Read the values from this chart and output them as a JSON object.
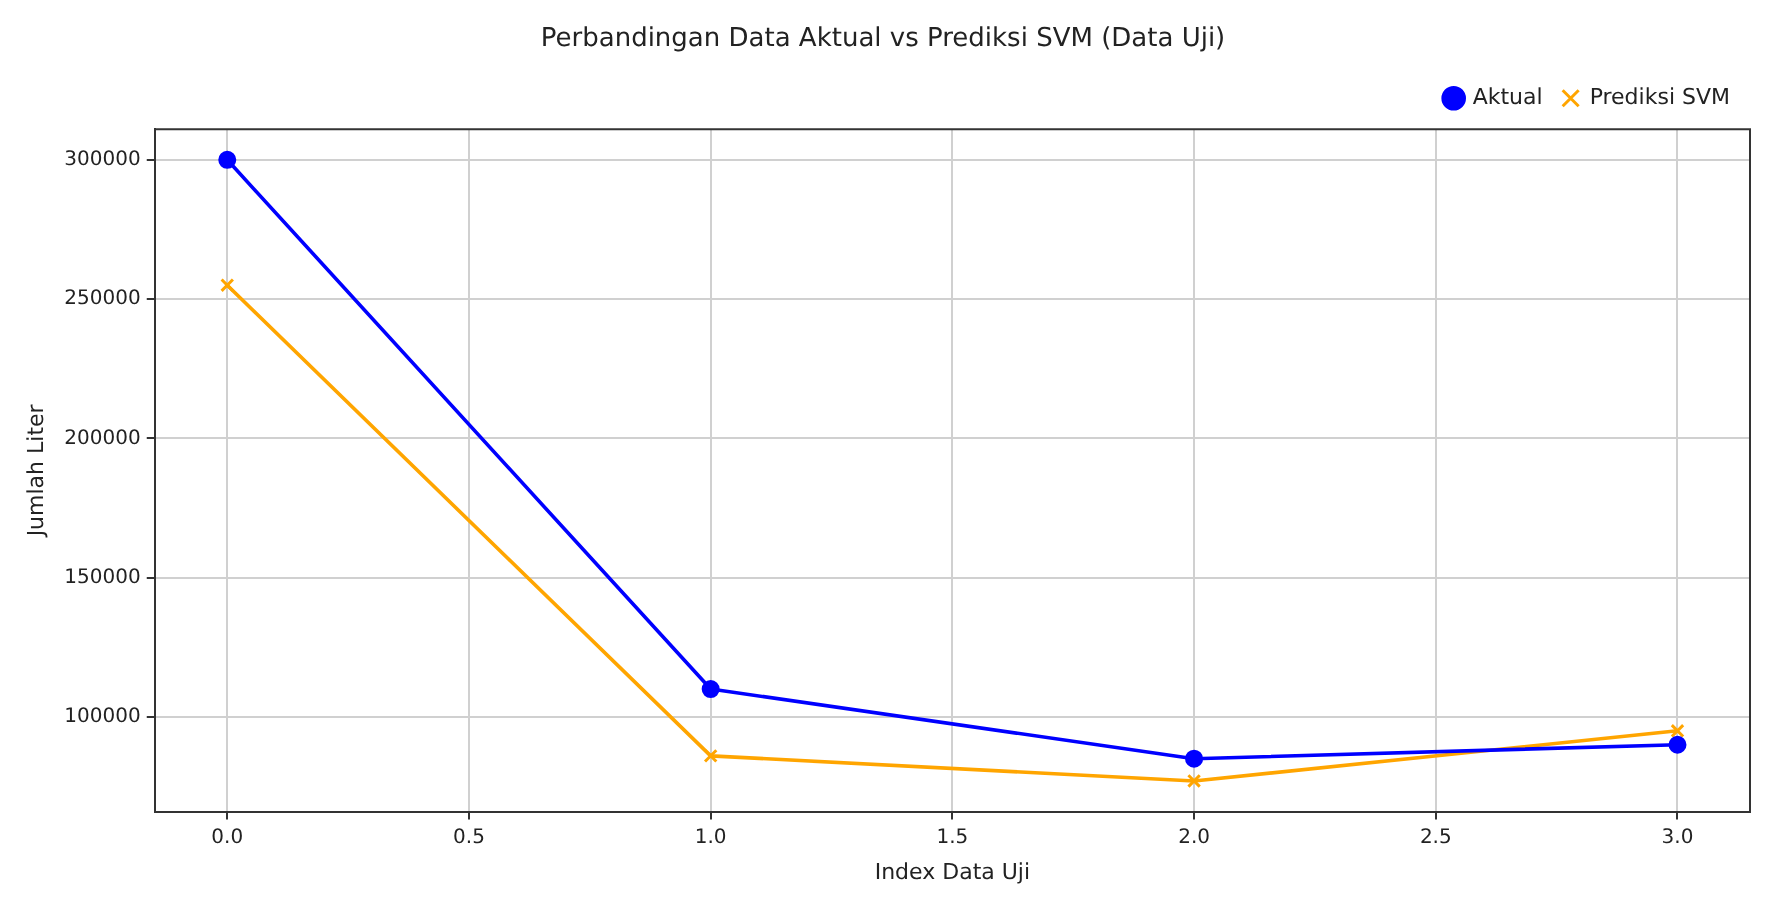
{
  "chart_data": {
    "type": "line",
    "title": "Perbandingan Data Aktual vs Prediksi SVM (Data Uji)",
    "xlabel": "Index Data Uji",
    "ylabel": "Jumlah Liter",
    "x": [
      0,
      1,
      2,
      3
    ],
    "series": [
      {
        "name": "Aktual",
        "color": "#0000ff",
        "marker": "circle",
        "values": [
          300000,
          110000,
          85000,
          90000
        ]
      },
      {
        "name": "Prediksi SVM",
        "color": "#ffa500",
        "marker": "cross",
        "values": [
          255000,
          86000,
          77000,
          95000
        ]
      }
    ],
    "xlim": [
      -0.15,
      3.15
    ],
    "xticks": [
      {
        "value": 0,
        "label": "0.0"
      },
      {
        "value": 0.5,
        "label": "0.5"
      },
      {
        "value": 1,
        "label": "1.0"
      },
      {
        "value": 1.5,
        "label": "1.5"
      },
      {
        "value": 2,
        "label": "2.0"
      },
      {
        "value": 2.5,
        "label": "2.5"
      },
      {
        "value": 3,
        "label": "3.0"
      }
    ],
    "ylim": [
      66000,
      311000
    ],
    "yticks": [
      100000,
      150000,
      200000,
      250000,
      300000
    ],
    "grid": true,
    "legend": "top right"
  }
}
